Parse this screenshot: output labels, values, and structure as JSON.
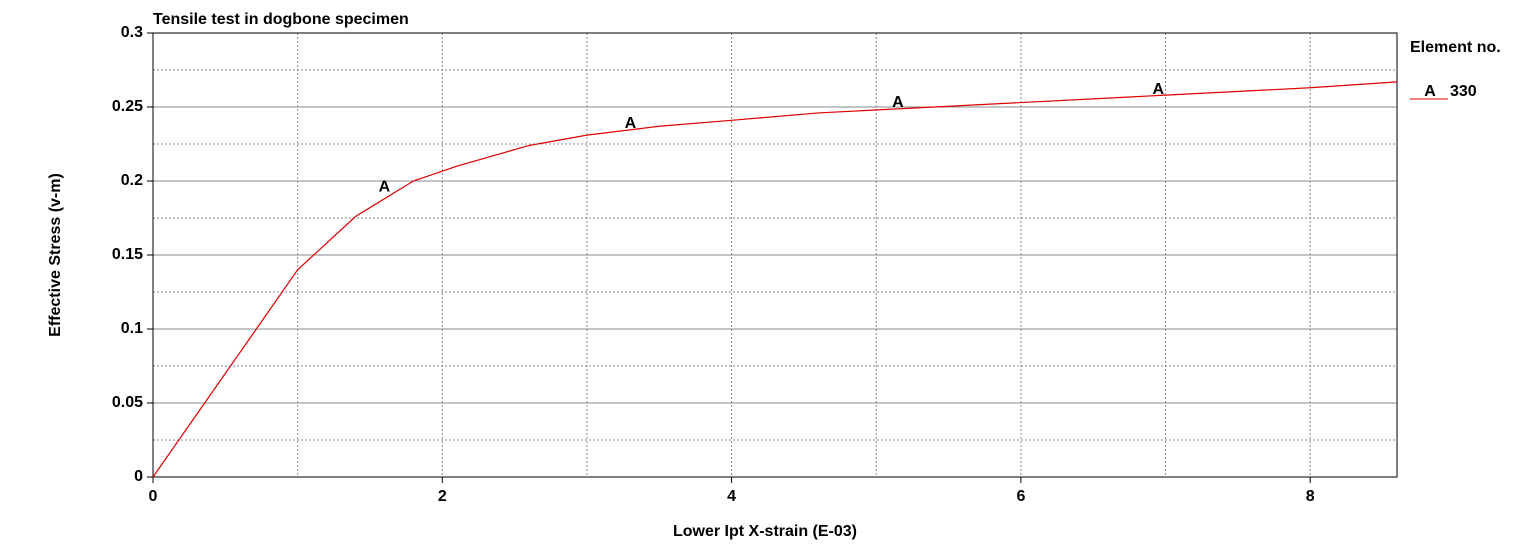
{
  "chart_data": {
    "type": "line",
    "title": "Tensile test in dogbone specimen",
    "x_label": "Lower Ipt X-strain (E-03)",
    "y_label": "Effective Stress (v-m)",
    "legend_title": "Element no.",
    "legend_position": "right",
    "grid": true,
    "xlim": [
      0,
      8.6
    ],
    "ylim": [
      0,
      0.3
    ],
    "xticks": [
      0,
      2,
      4,
      6,
      8
    ],
    "yticks": [
      0,
      0.05,
      0.1,
      0.15,
      0.2,
      0.25,
      0.3
    ],
    "x_minor_ticks": [
      1,
      3,
      5,
      7
    ],
    "y_minor_ticks": [
      0.025,
      0.075,
      0.125,
      0.175,
      0.225,
      0.275
    ],
    "series": [
      {
        "name": "330",
        "label": "A",
        "color": "#e00000",
        "x": [
          0,
          1.0,
          1.4,
          1.8,
          2.1,
          2.6,
          3.0,
          3.5,
          4.0,
          4.6,
          5.2,
          6.0,
          6.6,
          7.0,
          8.0,
          8.6
        ],
        "values": [
          0,
          0.14,
          0.176,
          0.2,
          0.21,
          0.224,
          0.231,
          0.237,
          0.241,
          0.246,
          0.249,
          0.253,
          0.256,
          0.258,
          0.263,
          0.267
        ],
        "marker_x": [
          1.6,
          3.3,
          5.15,
          6.95
        ],
        "marker_values": [
          0.193,
          0.236,
          0.25,
          0.259
        ]
      }
    ]
  }
}
